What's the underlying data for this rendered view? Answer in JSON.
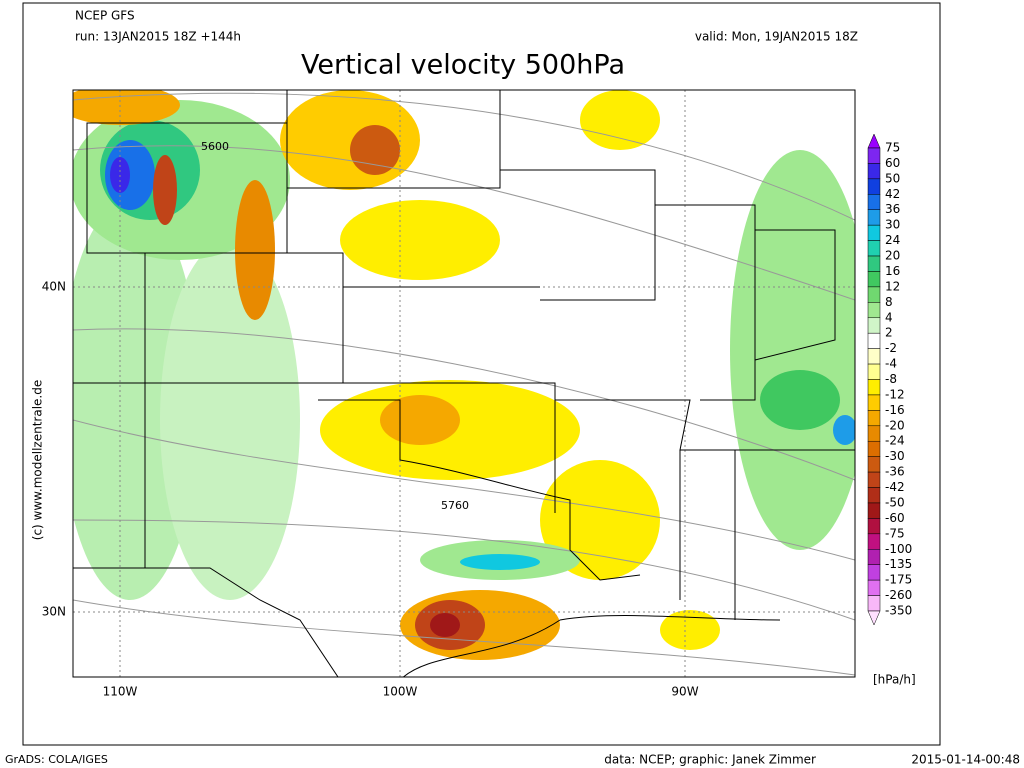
{
  "header": {
    "model": "NCEP GFS",
    "run": "run: 13JAN2015 18Z +144h",
    "valid": "valid: Mon, 19JAN2015 18Z",
    "title": "Vertical velocity 500hPa"
  },
  "map": {
    "lon_labels": [
      "110W",
      "100W",
      "90W"
    ],
    "lat_labels": [
      "40N",
      "30N"
    ],
    "contour_labels": [
      "5600",
      "5760"
    ],
    "credit": "(c) www.modellzentrale.de"
  },
  "legend": {
    "levels": [
      75,
      60,
      50,
      42,
      36,
      30,
      24,
      20,
      16,
      12,
      8,
      4,
      2,
      -2,
      -4,
      -8,
      -12,
      -16,
      -20,
      -24,
      -30,
      -36,
      -42,
      -50,
      -60,
      -75,
      -100,
      -135,
      -175,
      -260,
      -350
    ],
    "colors": [
      "#9a00ff",
      "#7d26f0",
      "#3a28e8",
      "#1040e0",
      "#1870e8",
      "#1e9ce8",
      "#10c8e0",
      "#20d0b0",
      "#30c880",
      "#40c860",
      "#70d870",
      "#a0e890",
      "#d0f5c8",
      "#ffffff",
      "#ffffc8",
      "#ffff90",
      "#ffee00",
      "#ffcc00",
      "#f5a800",
      "#e88a00",
      "#dc6e00",
      "#cc5a10",
      "#c04418",
      "#b02e18",
      "#a01818",
      "#b01040",
      "#c01080",
      "#b020b0",
      "#c040e0",
      "#e070f0",
      "#f8b8f8",
      "#ffe0ff"
    ],
    "unit": "[hPa/h]"
  },
  "footer": {
    "software": "GrADS: COLA/IGES",
    "source": "data: NCEP; graphic: Janek Zimmer",
    "timestamp": "2015-01-14-00:48"
  }
}
